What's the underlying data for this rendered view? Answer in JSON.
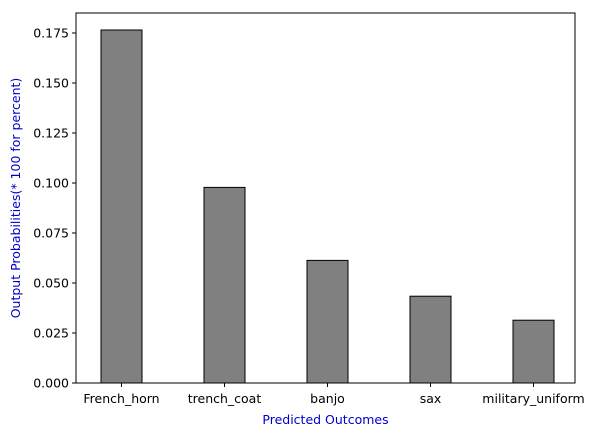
{
  "chart_data": {
    "type": "bar",
    "title": "",
    "xlabel": "Predicted Outcomes",
    "ylabel": "Output Probabilities(* 100 for percent)",
    "categories": [
      "French_horn",
      "trench_coat",
      "banjo",
      "sax",
      "military_uniform"
    ],
    "values": [
      0.1765,
      0.0978,
      0.0613,
      0.0434,
      0.0314
    ],
    "ylim": [
      0,
      0.185
    ],
    "yticks": [
      0.0,
      0.025,
      0.05,
      0.075,
      0.1,
      0.125,
      0.15,
      0.175
    ],
    "ytick_labels": [
      "0.000",
      "0.025",
      "0.050",
      "0.075",
      "0.100",
      "0.125",
      "0.150",
      "0.175"
    ],
    "grid": false,
    "colors": {
      "bar_fill": "#808080",
      "bar_edge": "#000000",
      "axis_label": "#0000cc"
    }
  }
}
